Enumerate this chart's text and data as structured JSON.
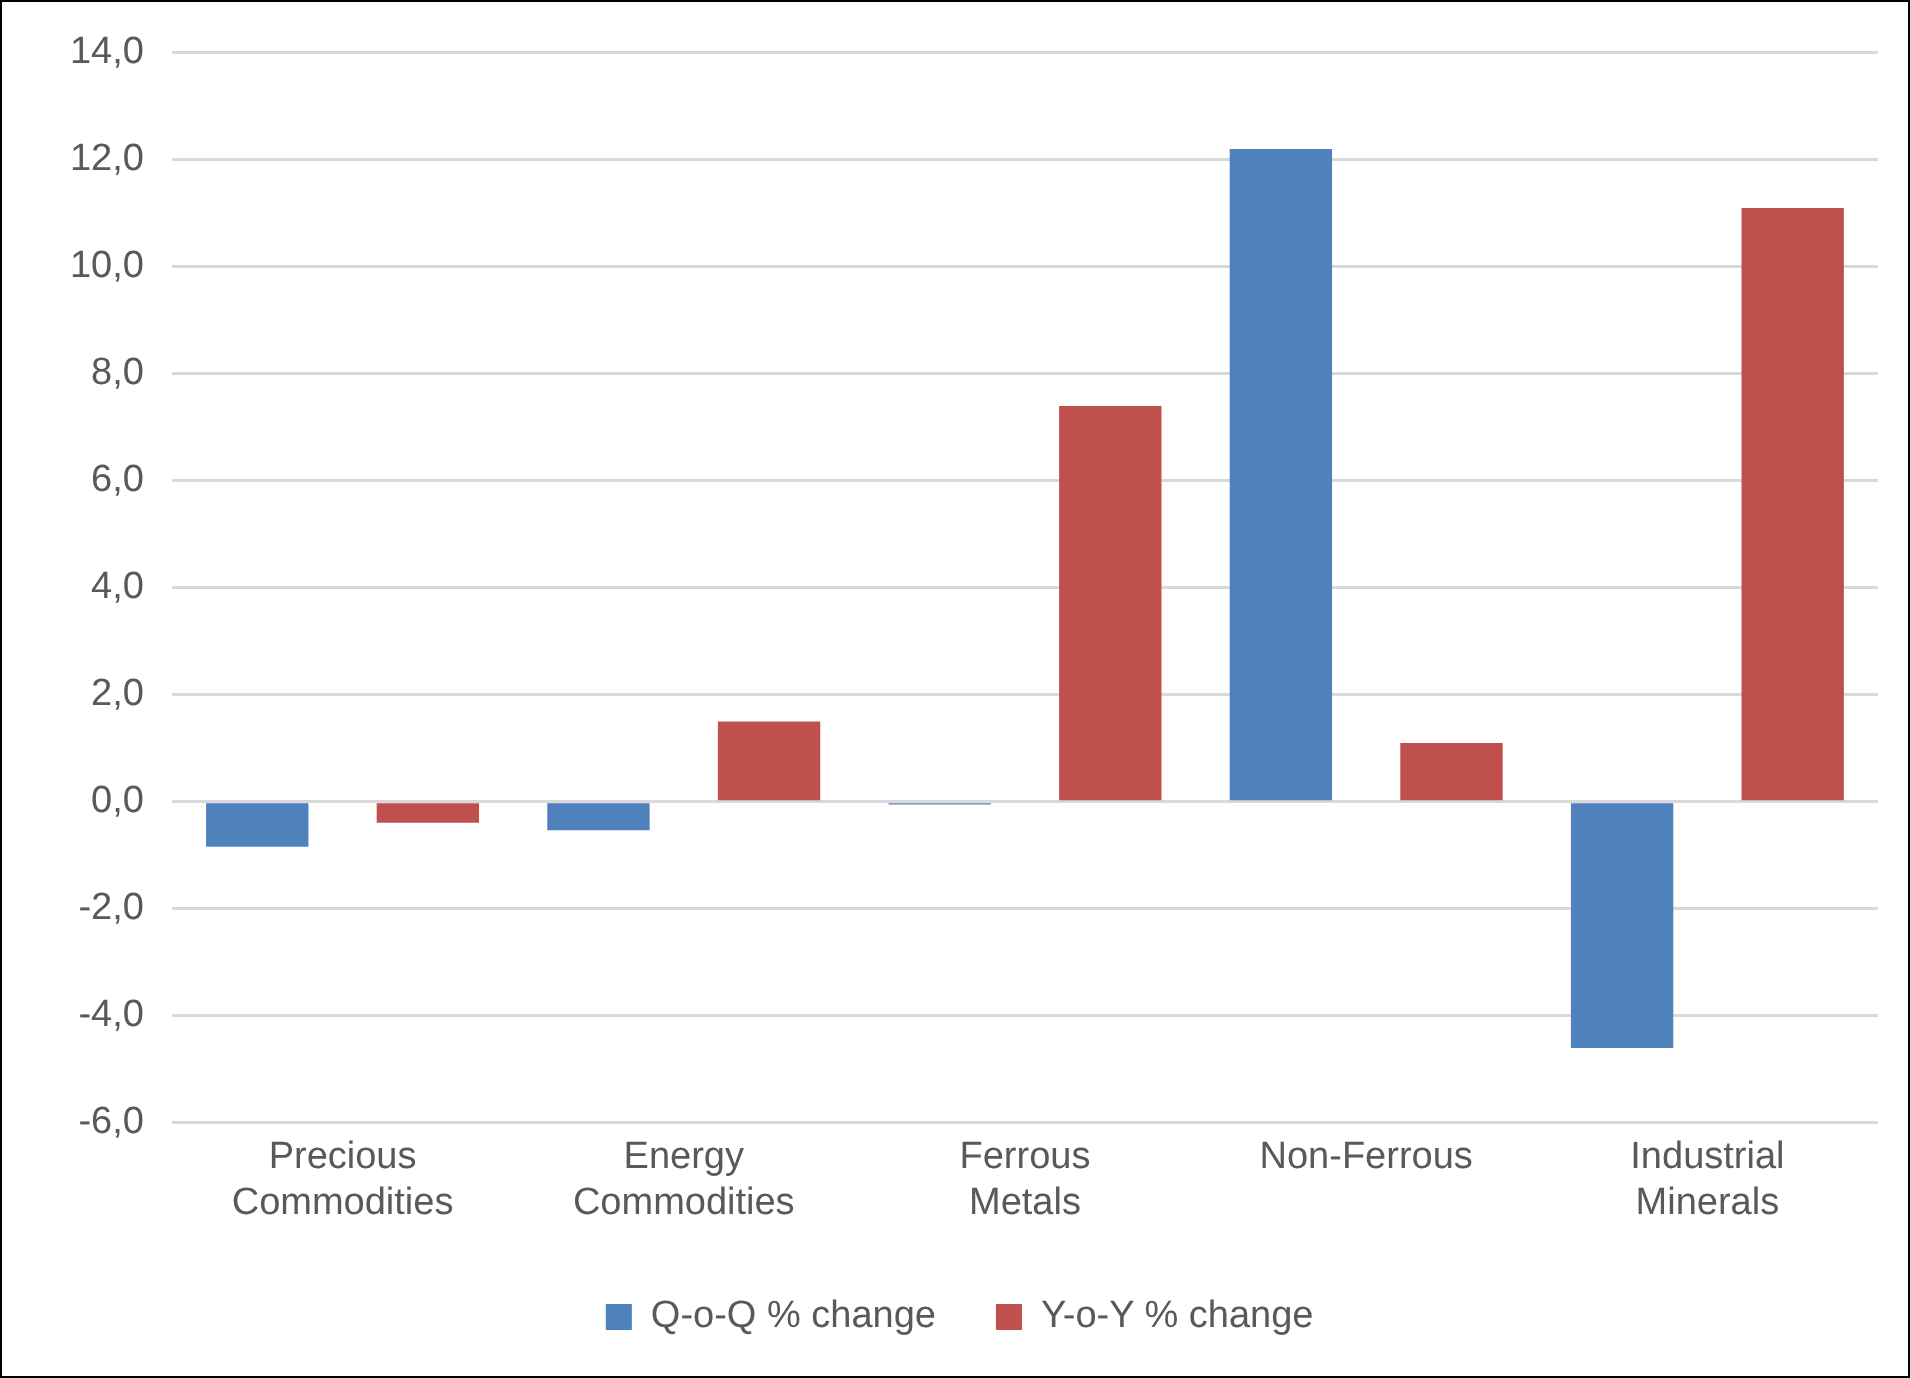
{
  "chart_data": {
    "type": "bar",
    "categories": [
      "Precious Commodities",
      "Energy Commodities",
      "Ferrous Metals",
      "Non-Ferrous",
      "Industrial Minerals"
    ],
    "series": [
      {
        "name": "Q-o-Q % change",
        "color": "#4f81bd",
        "values": [
          -0.84,
          -0.53,
          -0.05,
          12.2,
          -4.6
        ]
      },
      {
        "name": "Y-o-Y % change",
        "color": "#c0504d",
        "values": [
          -0.39,
          1.5,
          7.4,
          1.1,
          11.1
        ]
      }
    ],
    "ylim": [
      -6,
      14
    ],
    "yticks": [
      {
        "value": -6,
        "label": "-6,0"
      },
      {
        "value": -4,
        "label": "-4,0"
      },
      {
        "value": -2,
        "label": "-2,0"
      },
      {
        "value": 0,
        "label": "0,0"
      },
      {
        "value": 2,
        "label": "2,0"
      },
      {
        "value": 4,
        "label": "4,0"
      },
      {
        "value": 6,
        "label": "6,0"
      },
      {
        "value": 8,
        "label": "8,0"
      },
      {
        "value": 10,
        "label": "10,0"
      },
      {
        "value": 12,
        "label": "12,0"
      },
      {
        "value": 14,
        "label": "14,0"
      }
    ],
    "grid": "y",
    "legend": "bottom"
  }
}
